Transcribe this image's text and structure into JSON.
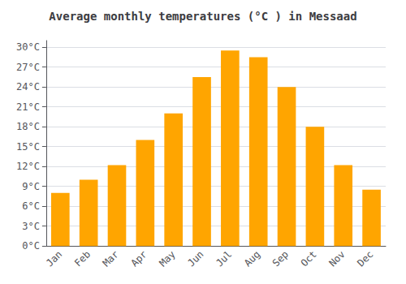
{
  "chart_data": {
    "type": "bar",
    "title": "Average monthly temperatures (°C ) in Messaad",
    "categories": [
      "Jan",
      "Feb",
      "Mar",
      "Apr",
      "May",
      "Jun",
      "Jul",
      "Aug",
      "Sep",
      "Oct",
      "Nov",
      "Dec"
    ],
    "values": [
      8.0,
      10.0,
      12.2,
      16.0,
      20.0,
      25.5,
      29.5,
      28.5,
      24.0,
      18.0,
      12.2,
      8.5
    ],
    "color": "#FFA500",
    "ylim": [
      0,
      31
    ],
    "yticks": [
      {
        "value": 0,
        "label": "0°C"
      },
      {
        "value": 3,
        "label": "3°C"
      },
      {
        "value": 6,
        "label": "6°C"
      },
      {
        "value": 9,
        "label": "9°C"
      },
      {
        "value": 12,
        "label": "12°C"
      },
      {
        "value": 15,
        "label": "15°C"
      },
      {
        "value": 18,
        "label": "18°C"
      },
      {
        "value": 21,
        "label": "21°C"
      },
      {
        "value": 24,
        "label": "24°C"
      },
      {
        "value": 27,
        "label": "27°C"
      },
      {
        "value": 30,
        "label": "30°C"
      }
    ],
    "grid": true
  }
}
